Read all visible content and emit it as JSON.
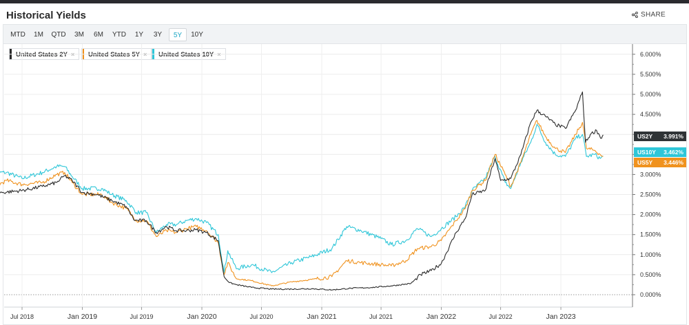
{
  "header": {
    "title": "Historical Yields",
    "share_label": "SHARE"
  },
  "ranges": {
    "items": [
      "MTD",
      "1M",
      "QTD",
      "3M",
      "6M",
      "YTD",
      "1Y",
      "3Y",
      "5Y",
      "10Y"
    ],
    "active": "5Y"
  },
  "legend": [
    {
      "label": "United States 2Y",
      "close": "×",
      "color": "#2b2b2b"
    },
    {
      "label": "United States 5Y",
      "close": "×",
      "color": "#f0921e"
    },
    {
      "label": "United States 10Y",
      "close": "×",
      "color": "#2ec6d8"
    }
  ],
  "last_tags": [
    {
      "short": "US2Y",
      "value": "3.991%",
      "color": "#2f3336"
    },
    {
      "short": "US10Y",
      "value": "3.462%",
      "color": "#2ec6d8"
    },
    {
      "short": "US5Y",
      "value": "3.446%",
      "color": "#f0921e"
    }
  ],
  "chart_data": {
    "type": "line",
    "title": "Historical Yields",
    "xlabel": "",
    "ylabel": "",
    "ylim": [
      0,
      6.25
    ],
    "y_ticks": [
      "0.000%",
      "0.500%",
      "1.000%",
      "1.500%",
      "2.000%",
      "2.500%",
      "3.000%",
      "3.500%",
      "4.000%",
      "4.500%",
      "5.000%",
      "5.500%",
      "6.000%"
    ],
    "y_tick_values": [
      0,
      0.5,
      1.0,
      1.5,
      2.0,
      2.5,
      3.0,
      3.5,
      4.0,
      4.5,
      5.0,
      5.5,
      6.0
    ],
    "x_ticks": [
      {
        "label": "Jul 2018",
        "date": "2018-07-01",
        "major": false
      },
      {
        "label": "Jan 2019",
        "date": "2019-01-01",
        "major": true
      },
      {
        "label": "Jul 2019",
        "date": "2019-07-01",
        "major": false
      },
      {
        "label": "Jan 2020",
        "date": "2020-01-01",
        "major": true
      },
      {
        "label": "Jul 2020",
        "date": "2020-07-01",
        "major": false
      },
      {
        "label": "Jan 2021",
        "date": "2021-01-01",
        "major": true
      },
      {
        "label": "Jul 2021",
        "date": "2021-07-01",
        "major": false
      },
      {
        "label": "Jan 2022",
        "date": "2022-01-01",
        "major": true
      },
      {
        "label": "Jul 2022",
        "date": "2022-07-01",
        "major": false
      },
      {
        "label": "Jan 2023",
        "date": "2023-01-01",
        "major": true
      }
    ],
    "grid": true,
    "legend_position": "top-left",
    "series": [
      {
        "name": "United States 2Y",
        "color": "#2b2b2b",
        "points": [
          [
            "2018-03-28",
            2.55
          ],
          [
            "2018-05-01",
            2.55
          ],
          [
            "2018-07-01",
            2.6
          ],
          [
            "2018-09-01",
            2.7
          ],
          [
            "2018-10-15",
            2.8
          ],
          [
            "2018-11-08",
            2.97
          ],
          [
            "2018-12-01",
            2.85
          ],
          [
            "2019-01-01",
            2.55
          ],
          [
            "2019-02-15",
            2.5
          ],
          [
            "2019-04-01",
            2.35
          ],
          [
            "2019-05-15",
            2.2
          ],
          [
            "2019-06-10",
            1.85
          ],
          [
            "2019-07-15",
            1.85
          ],
          [
            "2019-08-15",
            1.55
          ],
          [
            "2019-09-15",
            1.7
          ],
          [
            "2019-10-15",
            1.6
          ],
          [
            "2019-11-15",
            1.6
          ],
          [
            "2019-12-15",
            1.62
          ],
          [
            "2020-01-15",
            1.55
          ],
          [
            "2020-02-20",
            1.35
          ],
          [
            "2020-03-09",
            0.45
          ],
          [
            "2020-03-25",
            0.3
          ],
          [
            "2020-04-15",
            0.25
          ],
          [
            "2020-06-01",
            0.18
          ],
          [
            "2020-08-01",
            0.14
          ],
          [
            "2020-10-01",
            0.14
          ],
          [
            "2020-12-01",
            0.15
          ],
          [
            "2021-02-01",
            0.12
          ],
          [
            "2021-04-01",
            0.16
          ],
          [
            "2021-06-01",
            0.18
          ],
          [
            "2021-08-01",
            0.22
          ],
          [
            "2021-09-30",
            0.28
          ],
          [
            "2021-10-30",
            0.5
          ],
          [
            "2021-12-01",
            0.6
          ],
          [
            "2022-01-01",
            0.78
          ],
          [
            "2022-02-15",
            1.55
          ],
          [
            "2022-03-15",
            1.9
          ],
          [
            "2022-04-05",
            2.5
          ],
          [
            "2022-05-15",
            2.6
          ],
          [
            "2022-06-14",
            3.4
          ],
          [
            "2022-07-01",
            2.85
          ],
          [
            "2022-08-01",
            2.9
          ],
          [
            "2022-09-01",
            3.5
          ],
          [
            "2022-10-01",
            4.3
          ],
          [
            "2022-10-20",
            4.6
          ],
          [
            "2022-11-15",
            4.45
          ],
          [
            "2022-12-15",
            4.25
          ],
          [
            "2023-01-15",
            4.15
          ],
          [
            "2023-02-15",
            4.6
          ],
          [
            "2023-03-08",
            5.06
          ],
          [
            "2023-03-17",
            3.8
          ],
          [
            "2023-04-01",
            4.0
          ],
          [
            "2023-04-20",
            4.1
          ],
          [
            "2023-05-05",
            3.9
          ],
          [
            "2023-05-10",
            3.99
          ]
        ]
      },
      {
        "name": "United States 5Y",
        "color": "#f0921e",
        "points": [
          [
            "2018-03-28",
            2.65
          ],
          [
            "2018-05-15",
            2.85
          ],
          [
            "2018-07-01",
            2.75
          ],
          [
            "2018-09-01",
            2.8
          ],
          [
            "2018-10-15",
            3.0
          ],
          [
            "2018-11-08",
            3.05
          ],
          [
            "2018-12-01",
            2.8
          ],
          [
            "2019-01-01",
            2.5
          ],
          [
            "2019-03-01",
            2.5
          ],
          [
            "2019-04-01",
            2.3
          ],
          [
            "2019-05-15",
            2.15
          ],
          [
            "2019-06-15",
            1.85
          ],
          [
            "2019-07-15",
            1.85
          ],
          [
            "2019-08-15",
            1.45
          ],
          [
            "2019-09-15",
            1.6
          ],
          [
            "2019-10-15",
            1.55
          ],
          [
            "2019-11-15",
            1.65
          ],
          [
            "2019-12-15",
            1.7
          ],
          [
            "2020-01-15",
            1.6
          ],
          [
            "2020-02-20",
            1.3
          ],
          [
            "2020-03-09",
            0.5
          ],
          [
            "2020-03-20",
            0.8
          ],
          [
            "2020-04-15",
            0.4
          ],
          [
            "2020-06-01",
            0.35
          ],
          [
            "2020-08-01",
            0.22
          ],
          [
            "2020-10-01",
            0.32
          ],
          [
            "2020-12-01",
            0.38
          ],
          [
            "2021-02-01",
            0.45
          ],
          [
            "2021-03-18",
            0.85
          ],
          [
            "2021-05-01",
            0.8
          ],
          [
            "2021-07-01",
            0.75
          ],
          [
            "2021-08-01",
            0.72
          ],
          [
            "2021-09-15",
            0.85
          ],
          [
            "2021-10-20",
            1.15
          ],
          [
            "2021-12-01",
            1.2
          ],
          [
            "2022-01-01",
            1.35
          ],
          [
            "2022-02-15",
            1.85
          ],
          [
            "2022-03-15",
            2.15
          ],
          [
            "2022-04-05",
            2.6
          ],
          [
            "2022-05-15",
            2.85
          ],
          [
            "2022-06-14",
            3.5
          ],
          [
            "2022-07-15",
            3.0
          ],
          [
            "2022-08-01",
            2.7
          ],
          [
            "2022-09-01",
            3.3
          ],
          [
            "2022-10-01",
            4.0
          ],
          [
            "2022-10-20",
            4.35
          ],
          [
            "2022-11-15",
            3.95
          ],
          [
            "2022-12-15",
            3.65
          ],
          [
            "2023-01-15",
            3.55
          ],
          [
            "2023-02-15",
            4.0
          ],
          [
            "2023-03-08",
            4.3
          ],
          [
            "2023-03-20",
            3.65
          ],
          [
            "2023-04-15",
            3.6
          ],
          [
            "2023-05-01",
            3.5
          ],
          [
            "2023-05-10",
            3.45
          ]
        ]
      },
      {
        "name": "United States 10Y",
        "color": "#2ec6d8",
        "points": [
          [
            "2018-03-28",
            3.05
          ],
          [
            "2018-05-15",
            3.05
          ],
          [
            "2018-07-01",
            2.9
          ],
          [
            "2018-09-01",
            3.05
          ],
          [
            "2018-10-15",
            3.2
          ],
          [
            "2018-11-08",
            3.2
          ],
          [
            "2018-12-01",
            2.95
          ],
          [
            "2019-01-01",
            2.65
          ],
          [
            "2019-03-01",
            2.65
          ],
          [
            "2019-04-01",
            2.5
          ],
          [
            "2019-05-15",
            2.35
          ],
          [
            "2019-06-15",
            2.05
          ],
          [
            "2019-07-15",
            2.05
          ],
          [
            "2019-08-15",
            1.55
          ],
          [
            "2019-09-15",
            1.75
          ],
          [
            "2019-10-15",
            1.75
          ],
          [
            "2019-11-15",
            1.85
          ],
          [
            "2019-12-15",
            1.9
          ],
          [
            "2020-01-15",
            1.8
          ],
          [
            "2020-02-20",
            1.5
          ],
          [
            "2020-03-09",
            0.55
          ],
          [
            "2020-03-20",
            1.1
          ],
          [
            "2020-04-15",
            0.65
          ],
          [
            "2020-06-01",
            0.75
          ],
          [
            "2020-08-01",
            0.55
          ],
          [
            "2020-10-01",
            0.8
          ],
          [
            "2020-12-01",
            0.95
          ],
          [
            "2021-02-01",
            1.15
          ],
          [
            "2021-03-18",
            1.7
          ],
          [
            "2021-05-01",
            1.6
          ],
          [
            "2021-07-01",
            1.4
          ],
          [
            "2021-08-01",
            1.25
          ],
          [
            "2021-09-15",
            1.35
          ],
          [
            "2021-10-20",
            1.65
          ],
          [
            "2021-12-01",
            1.45
          ],
          [
            "2022-01-01",
            1.65
          ],
          [
            "2022-02-15",
            1.95
          ],
          [
            "2022-03-15",
            2.2
          ],
          [
            "2022-04-05",
            2.6
          ],
          [
            "2022-05-15",
            2.9
          ],
          [
            "2022-06-14",
            3.45
          ],
          [
            "2022-07-15",
            2.8
          ],
          [
            "2022-08-01",
            2.65
          ],
          [
            "2022-09-01",
            3.3
          ],
          [
            "2022-10-01",
            3.8
          ],
          [
            "2022-10-20",
            4.25
          ],
          [
            "2022-11-15",
            3.8
          ],
          [
            "2022-12-15",
            3.5
          ],
          [
            "2023-01-15",
            3.45
          ],
          [
            "2023-02-15",
            3.9
          ],
          [
            "2023-03-08",
            4.0
          ],
          [
            "2023-03-20",
            3.45
          ],
          [
            "2023-04-15",
            3.5
          ],
          [
            "2023-05-01",
            3.4
          ],
          [
            "2023-05-10",
            3.46
          ]
        ]
      }
    ]
  }
}
